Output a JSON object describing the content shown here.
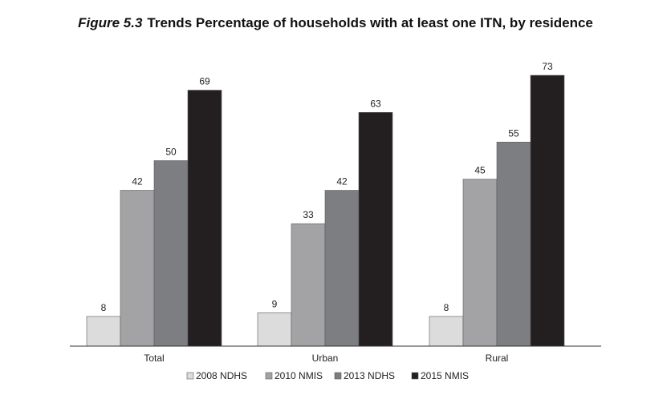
{
  "figure": {
    "number": "Figure 5.3",
    "title": "Trends Percentage of households with at least one ITN, by residence"
  },
  "chart_data": {
    "type": "bar",
    "categories": [
      "Total",
      "Urban",
      "Rural"
    ],
    "series": [
      {
        "name": "2008 NDHS",
        "values": [
          8,
          9,
          8
        ],
        "color": "#dcdcdc"
      },
      {
        "name": "2010 NMIS",
        "values": [
          42,
          33,
          45
        ],
        "color": "#a3a3a6"
      },
      {
        "name": "2013 NDHS",
        "values": [
          50,
          42,
          55
        ],
        "color": "#7d7e81"
      },
      {
        "name": "2015 NMIS",
        "values": [
          69,
          63,
          73
        ],
        "color": "#231f20"
      }
    ],
    "ylim": [
      0,
      73
    ],
    "grid": false,
    "legend_position": "bottom"
  }
}
